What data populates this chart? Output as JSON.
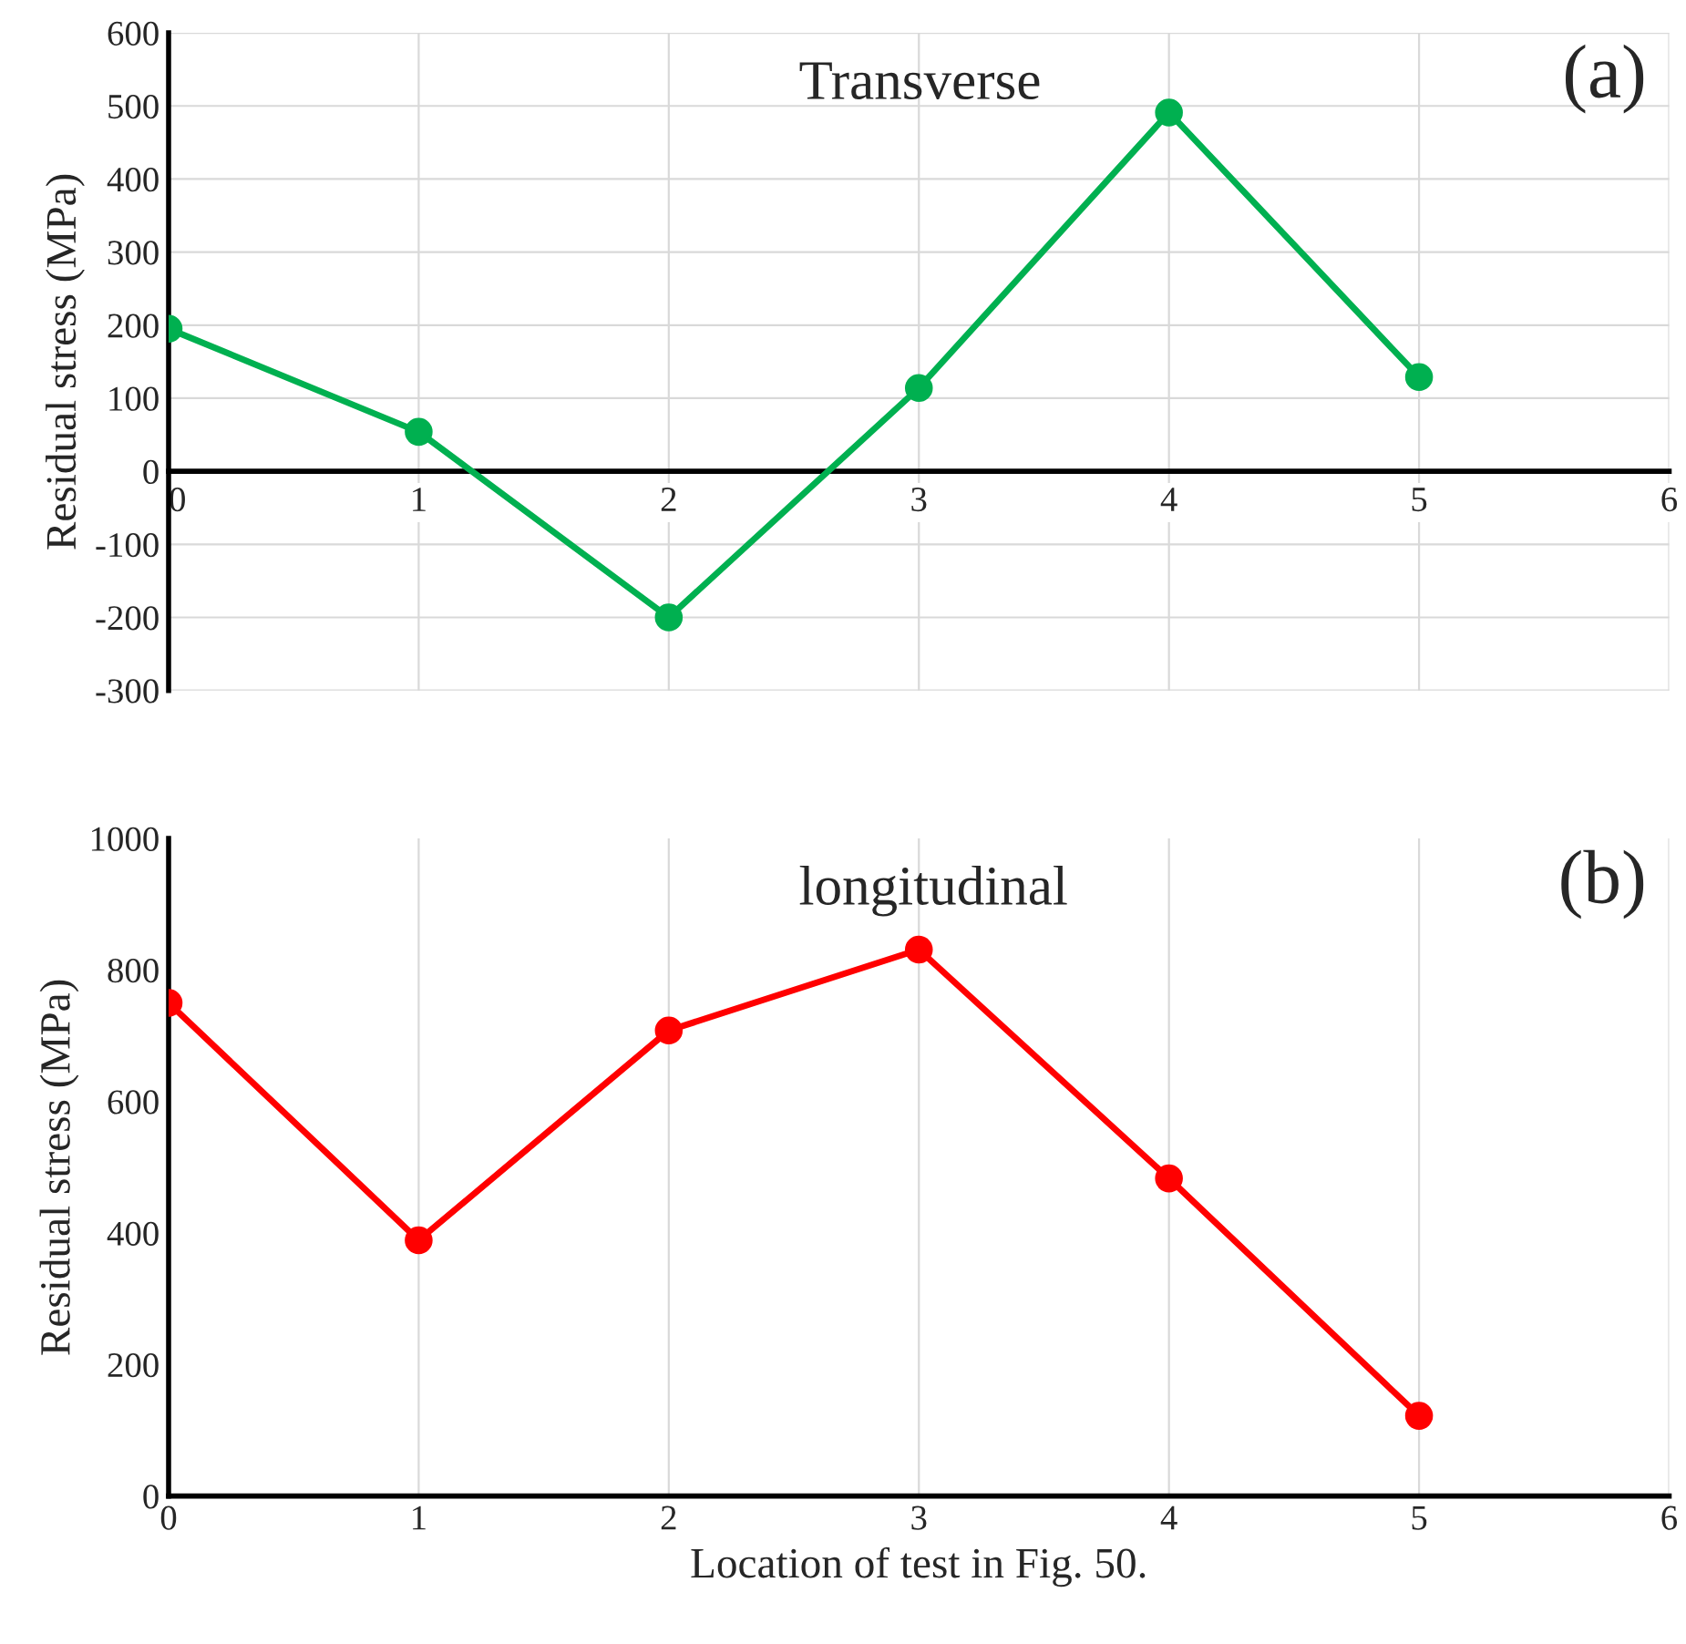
{
  "chart_data": [
    {
      "type": "line",
      "ylabel": "Residual stress (MPa)",
      "x": [
        0,
        1,
        2,
        3,
        4,
        5
      ],
      "series": [
        {
          "color": "#00b050",
          "values": [
            195,
            54,
            -200,
            114,
            491,
            129
          ]
        }
      ],
      "xlim": [
        0,
        6
      ],
      "xticks": [
        0,
        1,
        2,
        3,
        4,
        5,
        6
      ],
      "ylim": [
        -300,
        600
      ],
      "yticks": [
        -300,
        -200,
        -100,
        0,
        100,
        200,
        300,
        400,
        500,
        600
      ],
      "grid": true,
      "marker": "circle",
      "line_style": "solid",
      "annotations": [
        "Transverse",
        "(a)"
      ]
    },
    {
      "type": "line",
      "xlabel": "Location of test in Fig. 50.",
      "ylabel": "Residual stress (MPa)",
      "x": [
        0,
        1,
        2,
        3,
        4,
        5
      ],
      "series": [
        {
          "color": "#ff0000",
          "values": [
            750,
            389,
            708,
            831,
            483,
            122
          ]
        }
      ],
      "xlim": [
        0,
        6
      ],
      "xticks": [
        0,
        1,
        2,
        3,
        4,
        5,
        6
      ],
      "ylim": [
        0,
        1000
      ],
      "yticks": [
        0,
        200,
        400,
        600,
        800,
        1000
      ],
      "grid": "x",
      "marker": "circle",
      "line_style": "solid",
      "annotations": [
        "longitudinal",
        "(b)"
      ]
    }
  ]
}
